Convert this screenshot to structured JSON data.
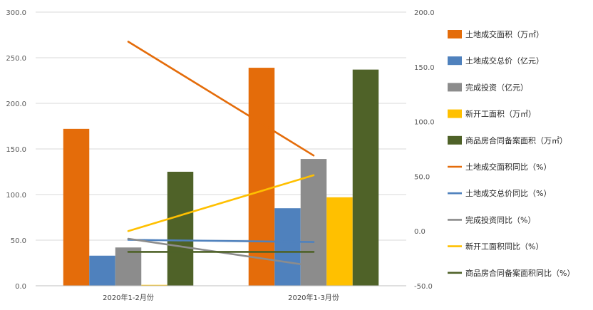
{
  "chart_data": {
    "type": "bar",
    "categories": [
      "2020年1-2月份",
      "2020年1-3月份"
    ],
    "y_left": {
      "ticks": [
        "0.0",
        "50.0",
        "100.0",
        "150.0",
        "200.0",
        "250.0",
        "300.0"
      ],
      "ylim": [
        0,
        300
      ]
    },
    "y_right": {
      "ticks": [
        "-50.0",
        "0.0",
        "50.0",
        "100.0",
        "150.0",
        "200.0"
      ],
      "ylim": [
        -50,
        200
      ]
    },
    "grid": true,
    "legend_position": "right",
    "bar_series": [
      {
        "name": "土地成交面积（万㎡）",
        "color": "#E46C0A",
        "values": [
          172,
          239
        ]
      },
      {
        "name": "土地成交总价（亿元）",
        "color": "#4F81BD",
        "values": [
          33,
          85
        ]
      },
      {
        "name": "完成投资（亿元）",
        "color": "#8C8C8C",
        "values": [
          42,
          139
        ]
      },
      {
        "name": "新开工面积（万㎡）",
        "color": "#FFC000",
        "values": [
          1,
          97
        ]
      },
      {
        "name": "商品房合同备案面积（万㎡）",
        "color": "#4F6228",
        "values": [
          125,
          237
        ]
      }
    ],
    "line_series": [
      {
        "name": "土地成交面积同比（%）",
        "color": "#E46C0A",
        "values": [
          173,
          69
        ]
      },
      {
        "name": "土地成交总价同比（%）",
        "color": "#4F81BD",
        "values": [
          -8,
          -10
        ]
      },
      {
        "name": "完成投资同比（%）",
        "color": "#8C8C8C",
        "values": [
          -7,
          -32
        ]
      },
      {
        "name": "新开工面积同比（%）",
        "color": "#FFC000",
        "values": [
          0,
          51
        ]
      },
      {
        "name": "商品房合同备案面积同比（%）",
        "color": "#4F6228",
        "values": [
          -19,
          -19
        ]
      }
    ]
  }
}
